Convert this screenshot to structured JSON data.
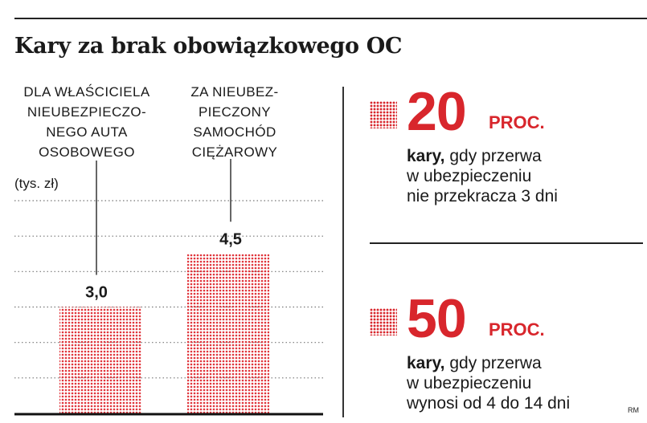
{
  "title": "Kary za brak obowiązkowego OC",
  "chart_data": {
    "type": "bar",
    "unit_label": "(tys. zł)",
    "ylim": [
      0,
      6
    ],
    "grid": true,
    "categories": [
      [
        "DLA WŁAŚCICIELA",
        "NIEUBEZPIECZO-",
        "NEGO AUTA",
        "OSOBOWEGO"
      ],
      [
        "ZA NIEUBEZ-",
        "PIECZONY",
        "SAMOCHÓD",
        "CIĘŻAROWY"
      ]
    ],
    "values": [
      3.0,
      4.5
    ],
    "value_labels": [
      "3,0",
      "4,5"
    ],
    "bar_color": "#e0353b"
  },
  "stats": [
    {
      "number": "20",
      "unit": "PROC.",
      "lead": "kary,",
      "line1": "gdy przerwa",
      "line2": "w ubezpieczeniu",
      "line3": "nie przekracza 3 dni"
    },
    {
      "number": "50",
      "unit": "PROC.",
      "lead": "kary,",
      "line1": "gdy przerwa",
      "line2": "w ubezpieczeniu",
      "line3": "wynosi od 4 do 14 dni"
    }
  ],
  "credit": "RM",
  "accent_color": "#d8262c"
}
